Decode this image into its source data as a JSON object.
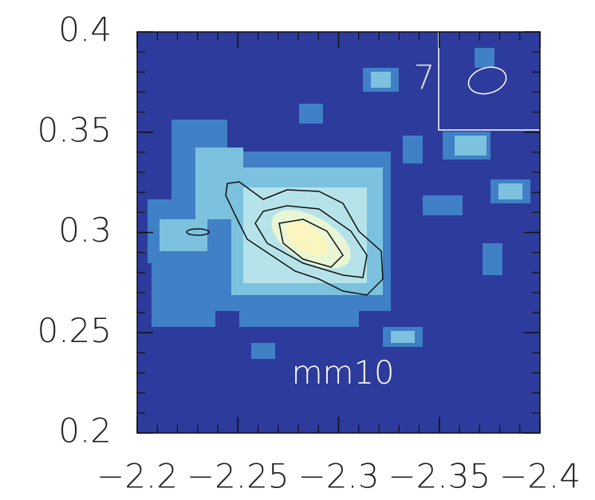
{
  "chart_data": {
    "type": "image",
    "annotations": [
      "mm10",
      "7"
    ],
    "xlim": [
      -2.2,
      -2.4
    ],
    "xticks": [
      {
        "value": -2.2,
        "label": "−2.2"
      },
      {
        "value": -2.25,
        "label": "−2.25"
      },
      {
        "value": -2.3,
        "label": "−2.3"
      },
      {
        "value": -2.35,
        "label": "−2.35"
      },
      {
        "value": -2.4,
        "label": "−2.4"
      }
    ],
    "ylim": [
      0.2,
      0.4
    ],
    "yticks": [
      0.2,
      0.25,
      0.3,
      0.35,
      0.4
    ]
  }
}
